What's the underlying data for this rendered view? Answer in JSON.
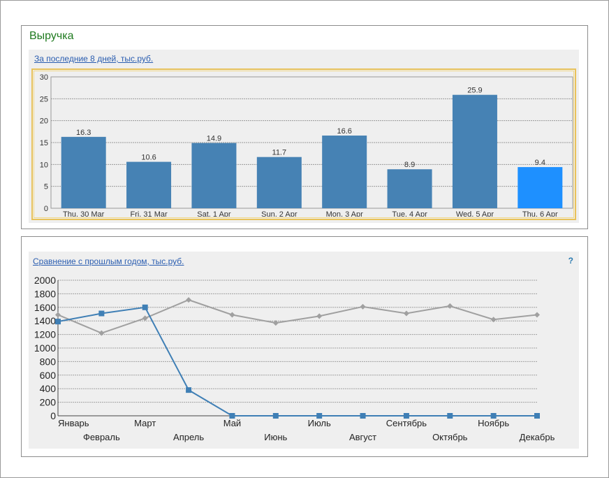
{
  "widget": {
    "title": "Выручка",
    "recent": {
      "link": "За последние 8 дней, тыс.руб."
    },
    "compare": {
      "link": "Сравнение с прошлым годом, тыс.руб.",
      "help": "?"
    }
  },
  "colors": {
    "bar": "#4682b4",
    "bar_highlight": "#1e90ff",
    "current_year": "#3f7fb5",
    "last_year": "#a0a0a0",
    "title": "#1f7a1f",
    "link": "#2a5db0"
  },
  "chart_data": [
    {
      "type": "bar",
      "categories": [
        "Thu, 30 Mar",
        "Fri, 31 Mar",
        "Sat, 1 Apr",
        "Sun, 2 Apr",
        "Mon, 3 Apr",
        "Tue, 4 Apr",
        "Wed, 5 Apr",
        "Thu, 6 Apr"
      ],
      "values": [
        16.3,
        10.6,
        14.9,
        11.7,
        16.6,
        8.9,
        25.9,
        9.4
      ],
      "data_labels": [
        "16.3",
        "10.6",
        "14.9",
        "11.7",
        "16.6",
        "8.9",
        "25.9",
        "9.4"
      ],
      "highlight_index": 7,
      "ylim": [
        0,
        30
      ],
      "yticks": [
        0,
        5,
        10,
        15,
        20,
        25,
        30
      ],
      "grid": true
    },
    {
      "type": "line",
      "categories": [
        "Январь",
        "Февраль",
        "Март",
        "Апрель",
        "Май",
        "Июнь",
        "Июль",
        "Август",
        "Сентябрь",
        "Октябрь",
        "Ноябрь",
        "Декабрь"
      ],
      "series": [
        {
          "values": [
            1390,
            1510,
            1600,
            380,
            0,
            0,
            0,
            0,
            0,
            0,
            0,
            0
          ],
          "marker": "square"
        },
        {
          "values": [
            1490,
            1220,
            1440,
            1710,
            1490,
            1370,
            1470,
            1610,
            1510,
            1620,
            1420,
            1490
          ],
          "marker": "diamond"
        }
      ],
      "ylim": [
        0,
        2000
      ],
      "yticks": [
        0,
        200,
        400,
        600,
        800,
        1000,
        1200,
        1400,
        1600,
        1800,
        2000
      ],
      "grid": true
    }
  ]
}
